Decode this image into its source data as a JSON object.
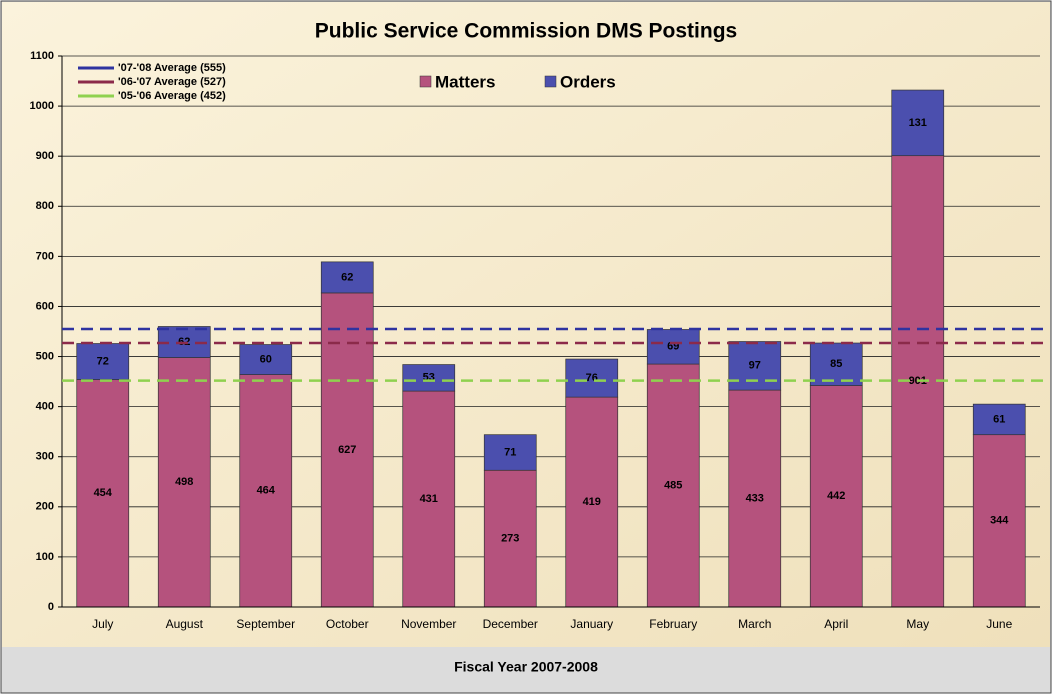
{
  "chart_data": {
    "type": "stacked_bar",
    "title": "Public Service Commission DMS Postings",
    "x_label": "Fiscal Year 2007-2008",
    "categories": [
      "July",
      "August",
      "September",
      "October",
      "November",
      "December",
      "January",
      "February",
      "March",
      "April",
      "May",
      "June"
    ],
    "series": [
      {
        "name": "Matters",
        "color": "#b5527d",
        "values": [
          454,
          498,
          464,
          627,
          431,
          273,
          419,
          485,
          433,
          442,
          901,
          344
        ]
      },
      {
        "name": "Orders",
        "color": "#4b4fae",
        "values": [
          72,
          62,
          60,
          62,
          53,
          71,
          76,
          69,
          97,
          85,
          131,
          61
        ]
      }
    ],
    "reference_lines": [
      {
        "name": "'07-'08  Average  (555)",
        "value": 555,
        "color": "#2e33a0"
      },
      {
        "name": "'06-'07  Average  (527)",
        "value": 527,
        "color": "#8b2a4a"
      },
      {
        "name": "'05-'06  Average  (452)",
        "value": 452,
        "color": "#8fd14f"
      }
    ],
    "ylim": [
      0,
      1100
    ],
    "yticks": [
      0,
      100,
      200,
      300,
      400,
      500,
      600,
      700,
      800,
      900,
      1000,
      1100
    ],
    "grid": true
  }
}
